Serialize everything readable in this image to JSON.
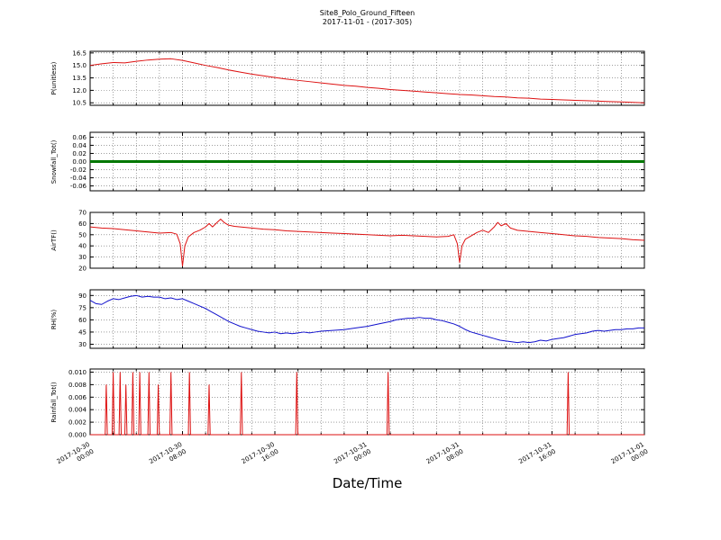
{
  "title": "Site8_Polo_Ground_Fifteen",
  "subtitle": "2017-11-01 - (2017-305)",
  "xlabel": "Date/Time",
  "x_axis": {
    "range_hours": [
      0,
      48
    ],
    "major_ticks_hours": [
      0,
      8,
      16,
      24,
      32,
      40,
      48
    ],
    "minor_step_hours": 2,
    "tick_labels": [
      [
        "2017-10-30",
        "00:00"
      ],
      [
        "2017-10-30",
        "08:00"
      ],
      [
        "2017-10-30",
        "16:00"
      ],
      [
        "2017-10-31",
        "00:00"
      ],
      [
        "2017-10-31",
        "08:00"
      ],
      [
        "2017-10-31",
        "16:00"
      ],
      [
        "2017-11-01",
        "00:00"
      ]
    ]
  },
  "chart_data": [
    {
      "type": "line",
      "ylabel": "P(unitless)",
      "color": "#dd1111",
      "linewidth": 1,
      "ylim": [
        10.2,
        16.7
      ],
      "ytick_values": [
        10.5,
        12.0,
        13.5,
        15.0,
        16.5
      ],
      "ytick_labels": [
        "10.5",
        "12.0",
        "13.5",
        "15.0",
        "16.5"
      ],
      "points": [
        [
          0,
          15.0
        ],
        [
          1,
          15.2
        ],
        [
          2,
          15.35
        ],
        [
          3,
          15.3
        ],
        [
          4,
          15.5
        ],
        [
          5,
          15.65
        ],
        [
          6,
          15.75
        ],
        [
          7,
          15.8
        ],
        [
          8,
          15.6
        ],
        [
          9,
          15.3
        ],
        [
          10,
          15.0
        ],
        [
          11,
          14.75
        ],
        [
          12,
          14.45
        ],
        [
          13,
          14.2
        ],
        [
          14,
          13.95
        ],
        [
          15,
          13.75
        ],
        [
          16,
          13.55
        ],
        [
          17,
          13.35
        ],
        [
          18,
          13.2
        ],
        [
          19,
          13.05
        ],
        [
          20,
          12.9
        ],
        [
          21,
          12.75
        ],
        [
          22,
          12.6
        ],
        [
          23,
          12.5
        ],
        [
          24,
          12.35
        ],
        [
          25,
          12.25
        ],
        [
          26,
          12.1
        ],
        [
          27,
          12.0
        ],
        [
          28,
          11.9
        ],
        [
          29,
          11.8
        ],
        [
          30,
          11.7
        ],
        [
          31,
          11.6
        ],
        [
          32,
          11.5
        ],
        [
          33,
          11.45
        ],
        [
          34,
          11.35
        ],
        [
          35,
          11.25
        ],
        [
          36,
          11.2
        ],
        [
          37,
          11.1
        ],
        [
          38,
          11.05
        ],
        [
          39,
          10.95
        ],
        [
          40,
          10.9
        ],
        [
          41,
          10.85
        ],
        [
          42,
          10.8
        ],
        [
          43,
          10.75
        ],
        [
          44,
          10.7
        ],
        [
          45,
          10.65
        ],
        [
          46,
          10.6
        ],
        [
          47,
          10.55
        ],
        [
          48,
          10.5
        ]
      ]
    },
    {
      "type": "line",
      "ylabel": "Snowfall_Tot()",
      "color": "#007700",
      "linewidth": 3,
      "ylim": [
        -0.072,
        0.072
      ],
      "ytick_values": [
        -0.06,
        -0.04,
        -0.02,
        0.0,
        0.02,
        0.04,
        0.06
      ],
      "ytick_labels": [
        "-0.06",
        "-0.04",
        "-0.02",
        "0.00",
        "0.02",
        "0.04",
        "0.06"
      ],
      "points": [
        [
          0,
          0
        ],
        [
          48,
          0
        ]
      ]
    },
    {
      "type": "line",
      "ylabel": "AirTF()",
      "color": "#dd1111",
      "linewidth": 1,
      "ylim": [
        20,
        70
      ],
      "ytick_values": [
        20,
        30,
        40,
        50,
        60,
        70
      ],
      "ytick_labels": [
        "20",
        "30",
        "40",
        "50",
        "60",
        "70"
      ],
      "points": [
        [
          0,
          57
        ],
        [
          1,
          56
        ],
        [
          2,
          55.5
        ],
        [
          3,
          54.5
        ],
        [
          4,
          53.5
        ],
        [
          5,
          52.5
        ],
        [
          6,
          51.5
        ],
        [
          7,
          52
        ],
        [
          7.5,
          50.5
        ],
        [
          7.8,
          42
        ],
        [
          8,
          22
        ],
        [
          8.2,
          40
        ],
        [
          8.5,
          48
        ],
        [
          9,
          52
        ],
        [
          9.5,
          54
        ],
        [
          10,
          57
        ],
        [
          10.3,
          60
        ],
        [
          10.6,
          57
        ],
        [
          11,
          61
        ],
        [
          11.3,
          64
        ],
        [
          11.6,
          61
        ],
        [
          12,
          58.5
        ],
        [
          12.5,
          57.5
        ],
        [
          13,
          57
        ],
        [
          13.5,
          56.5
        ],
        [
          14,
          56
        ],
        [
          15,
          55
        ],
        [
          16,
          54.5
        ],
        [
          17,
          53.5
        ],
        [
          18,
          53
        ],
        [
          19,
          52.5
        ],
        [
          20,
          52
        ],
        [
          21,
          51.5
        ],
        [
          22,
          51
        ],
        [
          23,
          50.5
        ],
        [
          24,
          50
        ],
        [
          25,
          49.5
        ],
        [
          26,
          49
        ],
        [
          27,
          49.5
        ],
        [
          28,
          49
        ],
        [
          29,
          48.5
        ],
        [
          30,
          48
        ],
        [
          31,
          48.5
        ],
        [
          31.5,
          50
        ],
        [
          31.8,
          42
        ],
        [
          32,
          25
        ],
        [
          32.2,
          40
        ],
        [
          32.5,
          46
        ],
        [
          33,
          49
        ],
        [
          33.5,
          52
        ],
        [
          34,
          54
        ],
        [
          34.5,
          52
        ],
        [
          35,
          57
        ],
        [
          35.3,
          61
        ],
        [
          35.6,
          58
        ],
        [
          36,
          60
        ],
        [
          36.4,
          56
        ],
        [
          37,
          54
        ],
        [
          38,
          53
        ],
        [
          39,
          52
        ],
        [
          40,
          51
        ],
        [
          41,
          50
        ],
        [
          42,
          49
        ],
        [
          43,
          48.5
        ],
        [
          44,
          47.5
        ],
        [
          45,
          47
        ],
        [
          46,
          46.5
        ],
        [
          47,
          45.5
        ],
        [
          48,
          45
        ]
      ]
    },
    {
      "type": "line",
      "ylabel": "RH(%)",
      "color": "#1111cc",
      "linewidth": 1,
      "ylim": [
        25,
        97
      ],
      "ytick_values": [
        30,
        45,
        60,
        75,
        90
      ],
      "ytick_labels": [
        "30",
        "45",
        "60",
        "75",
        "90"
      ],
      "points": [
        [
          0,
          84
        ],
        [
          0.5,
          80
        ],
        [
          1,
          79
        ],
        [
          1.5,
          83
        ],
        [
          2,
          86
        ],
        [
          2.5,
          85
        ],
        [
          3,
          87
        ],
        [
          3.5,
          89
        ],
        [
          4,
          90
        ],
        [
          4.5,
          88
        ],
        [
          5,
          89
        ],
        [
          5.5,
          88
        ],
        [
          6,
          88
        ],
        [
          6.5,
          86
        ],
        [
          7,
          87
        ],
        [
          7.5,
          85
        ],
        [
          8,
          86
        ],
        [
          8.5,
          83
        ],
        [
          9,
          80
        ],
        [
          9.5,
          77
        ],
        [
          10,
          74
        ],
        [
          10.5,
          70
        ],
        [
          11,
          66
        ],
        [
          11.5,
          62
        ],
        [
          12,
          58
        ],
        [
          12.5,
          55
        ],
        [
          13,
          52
        ],
        [
          13.5,
          50
        ],
        [
          14,
          48
        ],
        [
          14.5,
          46
        ],
        [
          15,
          45
        ],
        [
          15.5,
          44
        ],
        [
          16,
          45
        ],
        [
          16.5,
          43
        ],
        [
          17,
          44
        ],
        [
          17.5,
          43
        ],
        [
          18,
          44
        ],
        [
          18.5,
          45
        ],
        [
          19,
          44
        ],
        [
          19.5,
          45
        ],
        [
          20,
          46
        ],
        [
          21,
          47
        ],
        [
          22,
          48
        ],
        [
          23,
          50
        ],
        [
          24,
          52
        ],
        [
          25,
          55
        ],
        [
          26,
          58
        ],
        [
          26.5,
          60
        ],
        [
          27,
          61
        ],
        [
          27.5,
          62
        ],
        [
          28,
          62
        ],
        [
          28.5,
          63
        ],
        [
          29,
          62
        ],
        [
          29.5,
          62
        ],
        [
          30,
          60
        ],
        [
          30.5,
          59
        ],
        [
          31,
          57
        ],
        [
          31.5,
          55
        ],
        [
          32,
          52
        ],
        [
          32.5,
          48
        ],
        [
          33,
          45
        ],
        [
          33.5,
          43
        ],
        [
          34,
          41
        ],
        [
          34.5,
          39
        ],
        [
          35,
          37
        ],
        [
          35.5,
          35
        ],
        [
          36,
          34
        ],
        [
          36.5,
          33
        ],
        [
          37,
          32
        ],
        [
          37.5,
          33
        ],
        [
          38,
          32
        ],
        [
          38.5,
          33
        ],
        [
          39,
          35
        ],
        [
          39.5,
          34
        ],
        [
          40,
          36
        ],
        [
          40.5,
          37
        ],
        [
          41,
          38
        ],
        [
          41.5,
          40
        ],
        [
          42,
          42
        ],
        [
          42.5,
          43
        ],
        [
          43,
          44
        ],
        [
          43.5,
          46
        ],
        [
          44,
          47
        ],
        [
          44.5,
          46
        ],
        [
          45,
          47
        ],
        [
          45.5,
          48
        ],
        [
          46,
          48
        ],
        [
          46.5,
          49
        ],
        [
          47,
          49
        ],
        [
          47.5,
          50
        ],
        [
          48,
          50
        ]
      ]
    },
    {
      "type": "impulse",
      "ylabel": "Rainfall_Tot()",
      "color": "#dd1111",
      "linewidth": 1,
      "ylim": [
        0,
        0.0105
      ],
      "ytick_values": [
        0.0,
        0.002,
        0.004,
        0.006,
        0.008,
        0.01
      ],
      "ytick_labels": [
        "0.000",
        "0.002",
        "0.004",
        "0.006",
        "0.008",
        "0.010"
      ],
      "impulses": [
        [
          1.4,
          0.008
        ],
        [
          2.0,
          0.01
        ],
        [
          2.6,
          0.01
        ],
        [
          3.1,
          0.008
        ],
        [
          3.7,
          0.01
        ],
        [
          4.3,
          0.01
        ],
        [
          5.1,
          0.01
        ],
        [
          5.9,
          0.008
        ],
        [
          7.0,
          0.01
        ],
        [
          8.6,
          0.01
        ],
        [
          10.3,
          0.008
        ],
        [
          13.1,
          0.01
        ],
        [
          17.9,
          0.01
        ],
        [
          25.8,
          0.01
        ],
        [
          41.4,
          0.01
        ]
      ]
    }
  ]
}
